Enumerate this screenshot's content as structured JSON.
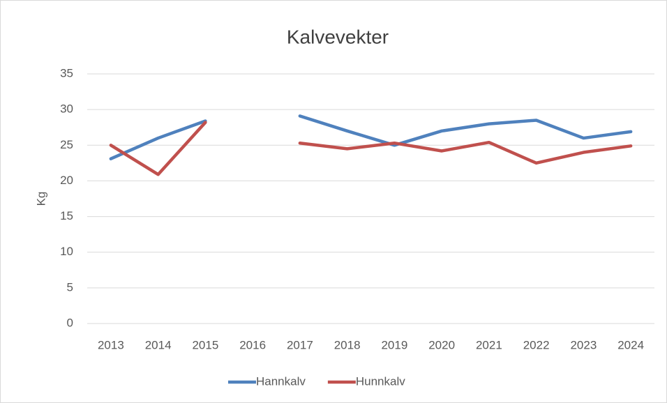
{
  "chart_data": {
    "type": "line",
    "title": "Kalvevekter",
    "y_label": "Kg",
    "categories": [
      "2013",
      "2014",
      "2015",
      "2016",
      "2017",
      "2018",
      "2019",
      "2020",
      "2021",
      "2022",
      "2023",
      "2024"
    ],
    "series": [
      {
        "name": "Hannkalv",
        "color": "#4f81bd",
        "values": [
          23.1,
          26,
          28.4,
          null,
          29.1,
          27,
          25,
          27,
          28,
          28.5,
          26,
          26.9
        ]
      },
      {
        "name": "Hunnkalv",
        "color": "#c0504d",
        "values": [
          25,
          20.9,
          28.2,
          null,
          25.3,
          24.5,
          25.3,
          24.2,
          25.4,
          22.5,
          24,
          24.9
        ]
      }
    ],
    "ylim": [
      0,
      35
    ],
    "yticks": [
      0,
      5,
      10,
      15,
      20,
      25,
      30,
      35
    ],
    "grid": true,
    "legend": "bottom"
  }
}
